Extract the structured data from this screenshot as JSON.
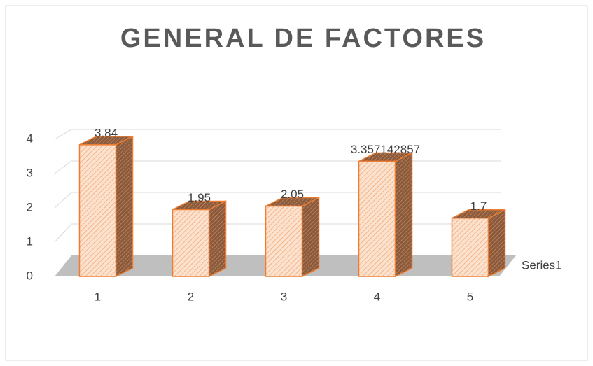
{
  "chart_data": {
    "type": "bar",
    "title": "GENERAL DE FACTORES",
    "categories": [
      "1",
      "2",
      "3",
      "4",
      "5"
    ],
    "series": [
      {
        "name": "Series1",
        "color": "#ed7d31",
        "values": [
          3.84,
          1.95,
          2.05,
          3.357142857,
          1.7
        ]
      }
    ],
    "ylim": [
      0,
      4
    ],
    "yticks": [
      0,
      1,
      2,
      3,
      4
    ],
    "grid": true
  }
}
